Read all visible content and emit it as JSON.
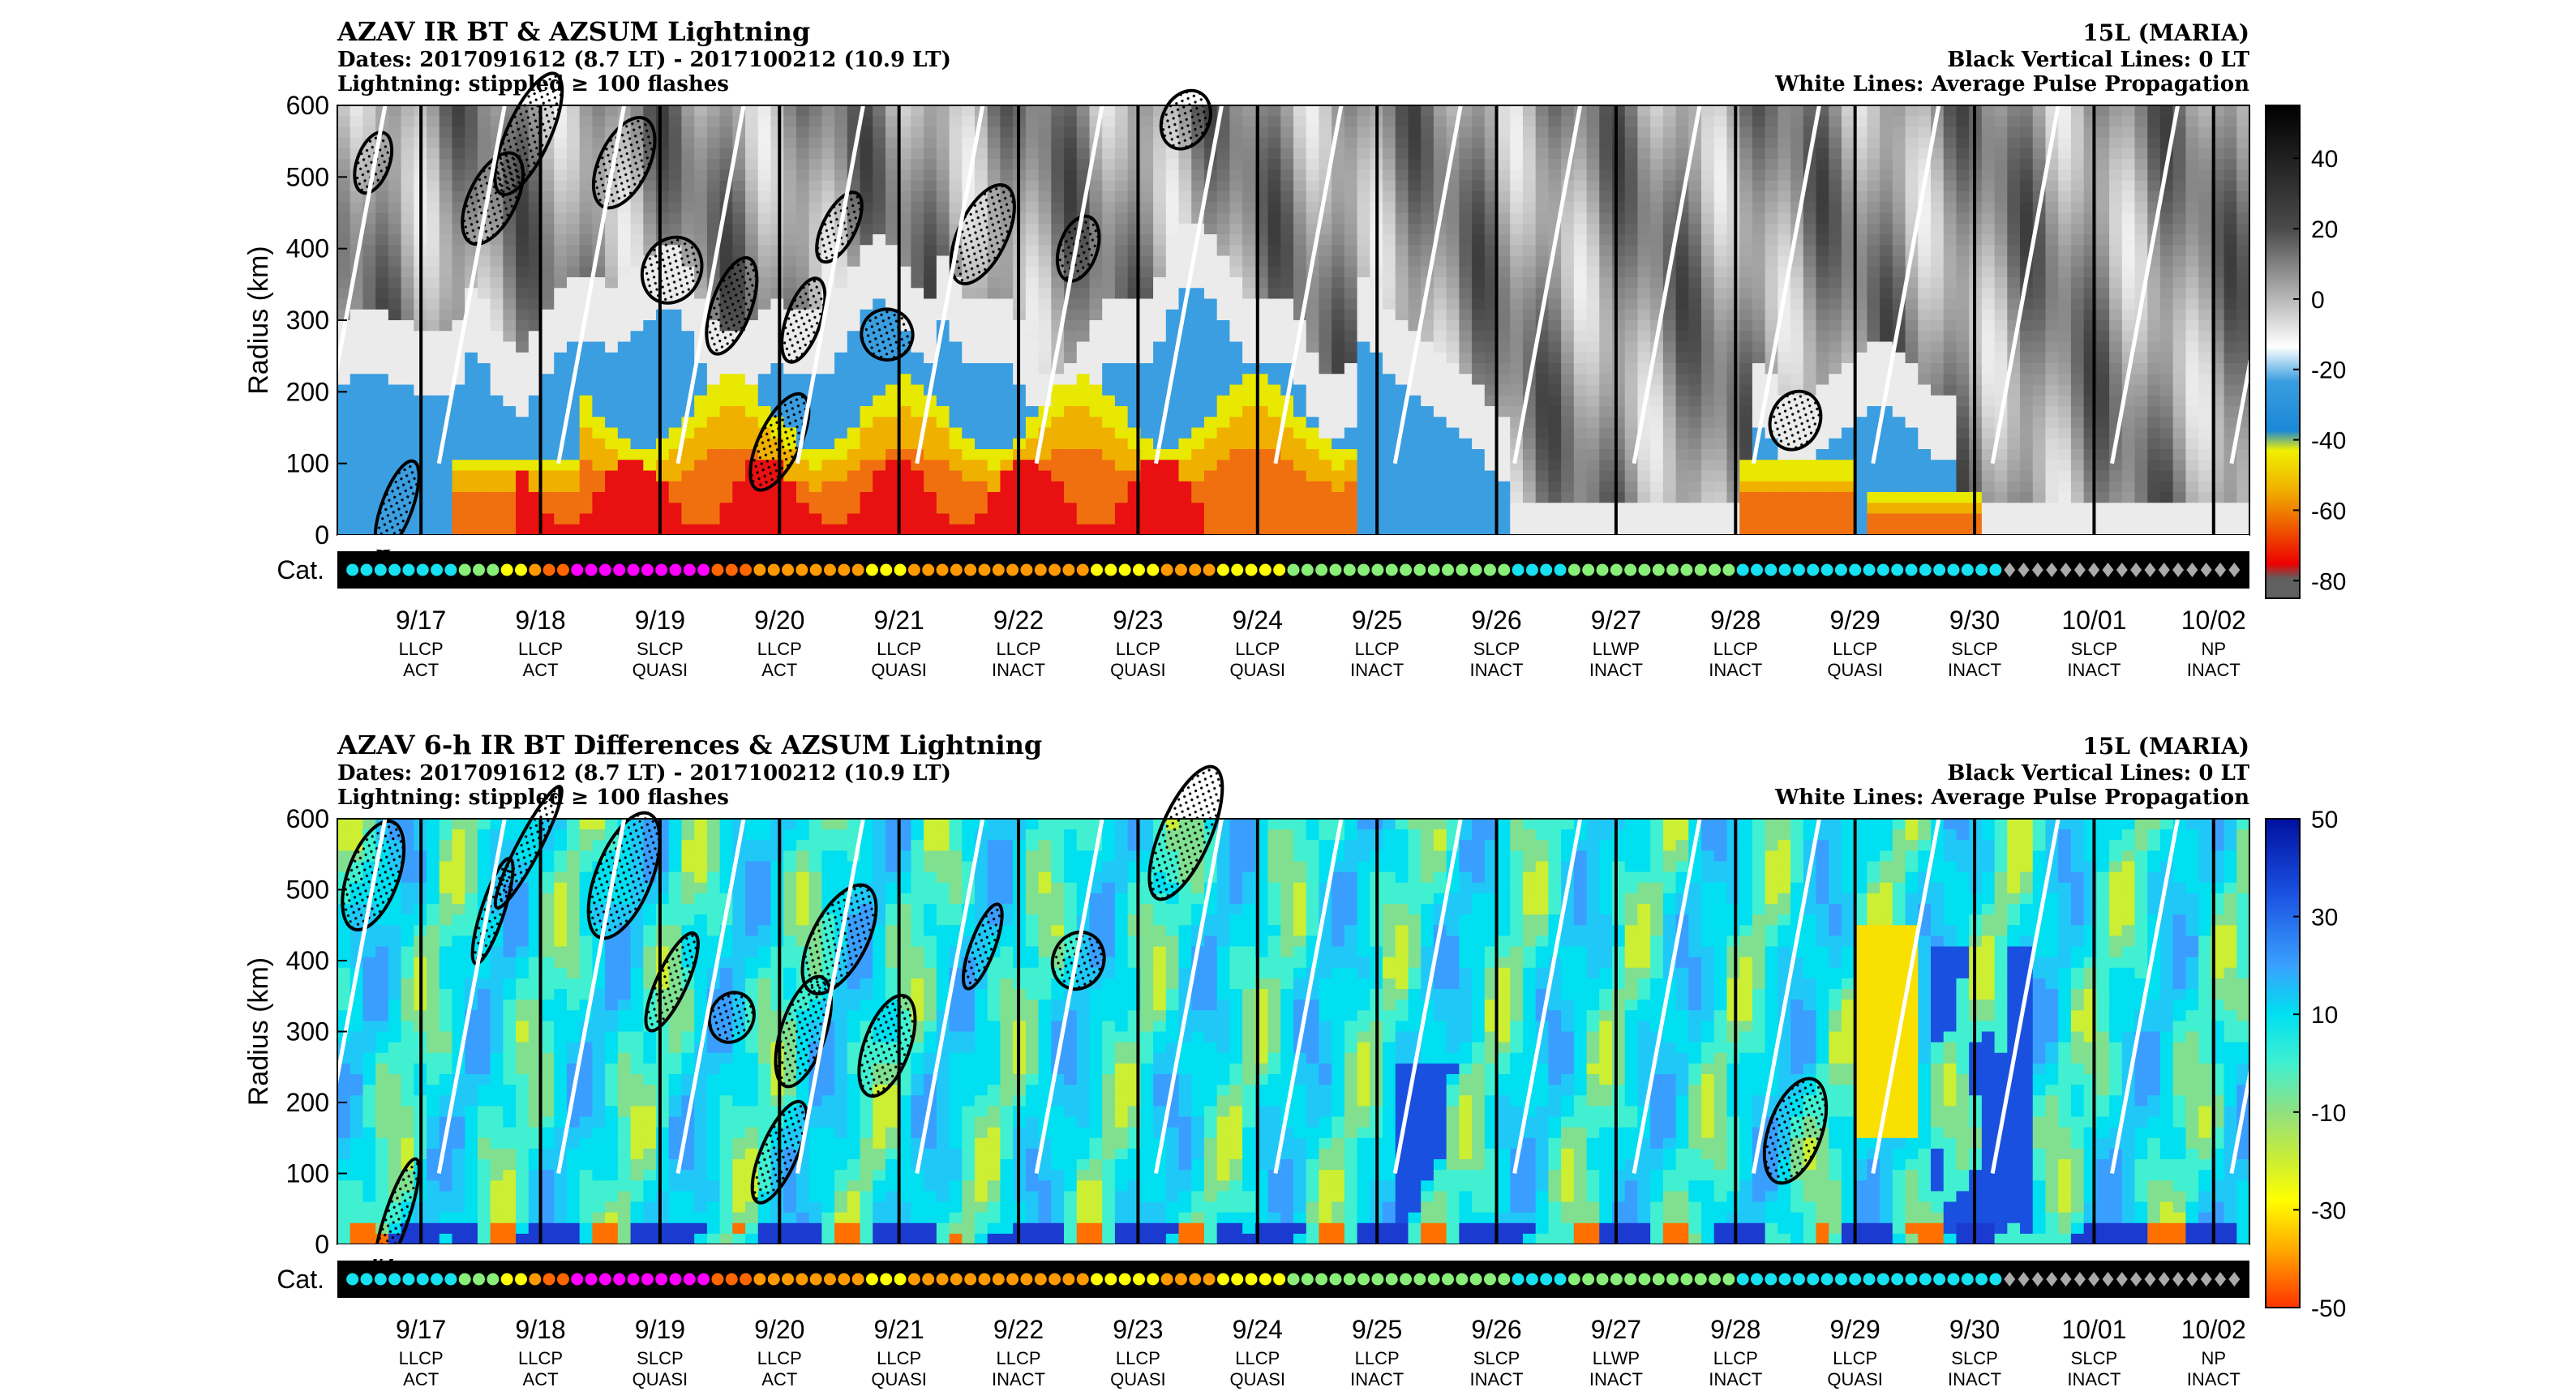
{
  "chart_data": [
    {
      "type": "heatmap",
      "title": "AZAV IR BT & AZSUM Lightning",
      "subtitle": [
        "Dates: 2017091612 (8.7 LT) - 2017100212 (10.9 LT)",
        "Lightning: stippled ≥ 100 flashes"
      ],
      "right_text": [
        "15L (MARIA)",
        "Black Vertical Lines: 0 LT",
        "White Lines: Average Pulse Propagation"
      ],
      "ylabel": "Radius (km)",
      "ylim": [
        0,
        600
      ],
      "yticks": [
        0,
        100,
        200,
        300,
        400,
        500,
        600
      ],
      "colorbar": {
        "ticks": [
          40,
          20,
          0,
          -20,
          -40,
          -60,
          -80
        ],
        "range": [
          55,
          -85
        ]
      },
      "colormap": "gray-blue-yellow-red",
      "category_label": "Cat."
    },
    {
      "type": "heatmap",
      "title": "AZAV 6-h IR BT Differences & AZSUM Lightning",
      "subtitle": [
        "Dates: 2017091612 (8.7 LT) - 2017100212 (10.9 LT)",
        "Lightning: stippled ≥ 100 flashes"
      ],
      "right_text": [
        "15L (MARIA)",
        "Black Vertical Lines: 0 LT",
        "White Lines: Average Pulse Propagation"
      ],
      "ylabel": "Radius (km)",
      "ylim": [
        0,
        600
      ],
      "yticks": [
        0,
        100,
        200,
        300,
        400,
        500,
        600
      ],
      "colorbar": {
        "ticks": [
          50,
          30,
          10,
          -10,
          -30,
          -50
        ],
        "range": [
          50,
          -50
        ]
      },
      "colormap": "blue-cyan-green-yellow-red",
      "category_label": "Cat."
    }
  ],
  "days": [
    {
      "date": "9/17",
      "class": "LLCP",
      "state": "ACT"
    },
    {
      "date": "9/18",
      "class": "LLCP",
      "state": "ACT"
    },
    {
      "date": "9/19",
      "class": "SLCP",
      "state": "QUASI"
    },
    {
      "date": "9/20",
      "class": "LLCP",
      "state": "ACT"
    },
    {
      "date": "9/21",
      "class": "LLCP",
      "state": "QUASI"
    },
    {
      "date": "9/22",
      "class": "LLCP",
      "state": "INACT"
    },
    {
      "date": "9/23",
      "class": "LLCP",
      "state": "QUASI"
    },
    {
      "date": "9/24",
      "class": "LLCP",
      "state": "QUASI"
    },
    {
      "date": "9/25",
      "class": "LLCP",
      "state": "INACT"
    },
    {
      "date": "9/26",
      "class": "SLCP",
      "state": "INACT"
    },
    {
      "date": "9/27",
      "class": "LLWP",
      "state": "INACT"
    },
    {
      "date": "9/28",
      "class": "LLCP",
      "state": "INACT"
    },
    {
      "date": "9/29",
      "class": "LLCP",
      "state": "QUASI"
    },
    {
      "date": "9/30",
      "class": "SLCP",
      "state": "INACT"
    },
    {
      "date": "10/01",
      "class": "SLCP",
      "state": "INACT"
    },
    {
      "date": "10/02",
      "class": "NP",
      "state": "INACT"
    }
  ],
  "category_colors": {
    "TD": "#2aa7ff",
    "TS": "#17e0f0",
    "C1": "#88ee77",
    "C2": "#ffff00",
    "C3": "#ff9900",
    "C4": "#ff6600",
    "C5": "#ff00ff",
    "EX": "#aaaaaa"
  },
  "category_sequence": "TS*8,C1*3,C2*2,C3*1,C4*2,C5*10,C4*3,C3*8,C2*3,C3*13,C2*5,C3*4,C2*5,C1*16,TS*4,C1*12,TS*19,EX*17"
}
